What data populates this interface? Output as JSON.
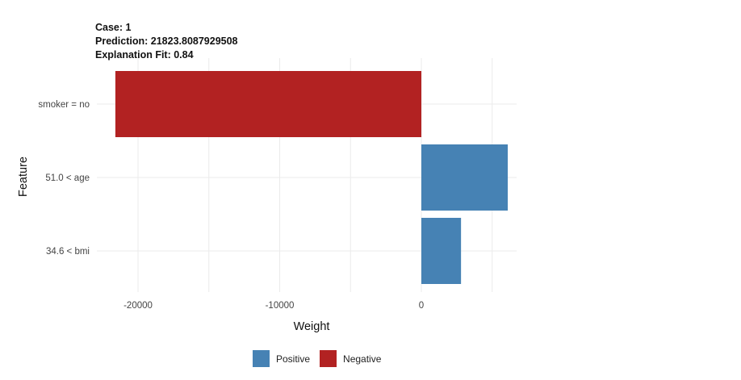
{
  "header": {
    "case": "Case: 1",
    "prediction": "Prediction: 21823.8087929508",
    "fit": "Explanation Fit: 0.84"
  },
  "chart_data": {
    "type": "bar",
    "orientation": "horizontal",
    "xlabel": "Weight",
    "ylabel": "Feature",
    "xlim": [
      -22000,
      6500
    ],
    "xticks": [
      -20000,
      -10000,
      0
    ],
    "xtick_labels": [
      "-20000",
      "-10000",
      "0"
    ],
    "grid": true,
    "legend_position": "bottom",
    "categories": [
      "smoker = no",
      "51.0 < age",
      "34.6 < bmi"
    ],
    "values": [
      -21600,
      6100,
      2800
    ],
    "series": [
      {
        "name": "Positive",
        "color": "#4682B4"
      },
      {
        "name": "Negative",
        "color": "#B22222"
      }
    ]
  }
}
